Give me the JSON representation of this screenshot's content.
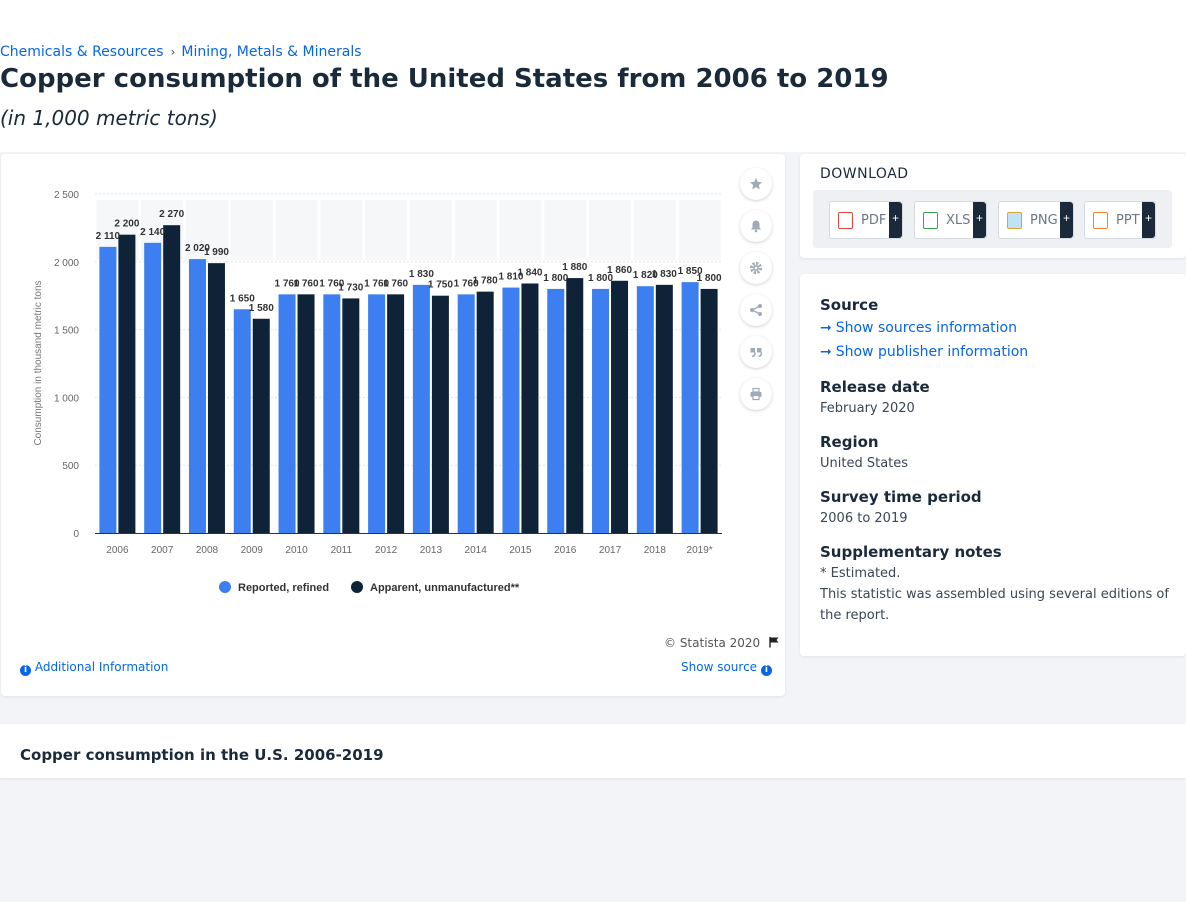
{
  "breadcrumb": {
    "items": [
      "Chemicals & Resources",
      "Mining, Metals & Minerals"
    ],
    "separator": "›"
  },
  "page": {
    "title": "Copper consumption of the United States from 2006 to 2019",
    "subtitle": "(in 1,000 metric tons)"
  },
  "chart_data": {
    "type": "bar",
    "categories": [
      "2006",
      "2007",
      "2008",
      "2009",
      "2010",
      "2011",
      "2012",
      "2013",
      "2014",
      "2015",
      "2016",
      "2017",
      "2018",
      "2019*"
    ],
    "series": [
      {
        "name": "Reported, refined",
        "color": "#3d7ff0",
        "values": [
          2110,
          2140,
          2020,
          1650,
          1760,
          1760,
          1760,
          1830,
          1760,
          1810,
          1800,
          1800,
          1820,
          1850
        ]
      },
      {
        "name": "Apparent, unmanufactured**",
        "color": "#0e2238",
        "values": [
          2200,
          2270,
          1990,
          1580,
          1760,
          1730,
          1760,
          1750,
          1780,
          1840,
          1880,
          1860,
          1830,
          1800
        ]
      }
    ],
    "value_labels": [
      [
        "2 110",
        "2 140",
        "2 020",
        "1 650",
        "1 760",
        "1 760",
        "1 760",
        "1 830",
        "1 760",
        "1 810",
        "1 800",
        "1 800",
        "1 820",
        "1 850"
      ],
      [
        "2 200",
        "2 270",
        "1 990",
        "1 580",
        "1 760",
        "1 730",
        "1 760",
        "1 750",
        "1 780",
        "1 840",
        "1 880",
        "1 860",
        "1 830",
        "1 800"
      ]
    ],
    "ylabel": "Consumption in thousand metric tons",
    "ylim": [
      0,
      2500
    ],
    "yticks": [
      0,
      500,
      1000,
      1500,
      2000,
      2500
    ],
    "ytick_labels": [
      "0",
      "500",
      "1 000",
      "1 500",
      "2 000",
      "2 500"
    ],
    "legend_position": "bottom-center",
    "grid": true
  },
  "chart_footer": {
    "copyright": "© Statista 2020",
    "additional_info": "Additional Information",
    "show_source": "Show source"
  },
  "toolbar": {
    "icons": [
      "star-icon",
      "bell-icon",
      "gear-icon",
      "share-icon",
      "quote-icon",
      "print-icon"
    ]
  },
  "download": {
    "title": "DOWNLOAD",
    "formats": [
      {
        "label": "PDF",
        "color": "#e2483d"
      },
      {
        "label": "XLS",
        "color": "#3aa34a"
      },
      {
        "label": "PNG",
        "color": "#e0a42a"
      },
      {
        "label": "PPT",
        "color": "#e8862a"
      }
    ],
    "plus": "+"
  },
  "meta": {
    "source_heading": "Source",
    "show_sources": "Show sources information",
    "show_publisher": "Show publisher information",
    "release_heading": "Release date",
    "release_value": "February 2020",
    "region_heading": "Region",
    "region_value": "United States",
    "survey_heading": "Survey time period",
    "survey_value": "2006 to 2019",
    "notes_heading": "Supplementary notes",
    "notes": [
      "* Estimated.",
      "This statistic was assembled using several editions of the report."
    ]
  },
  "bottom": {
    "title": "Copper consumption in the U.S. 2006-2019"
  },
  "colors": {
    "link": "#0666e5",
    "navy": "#1a2a3a"
  }
}
